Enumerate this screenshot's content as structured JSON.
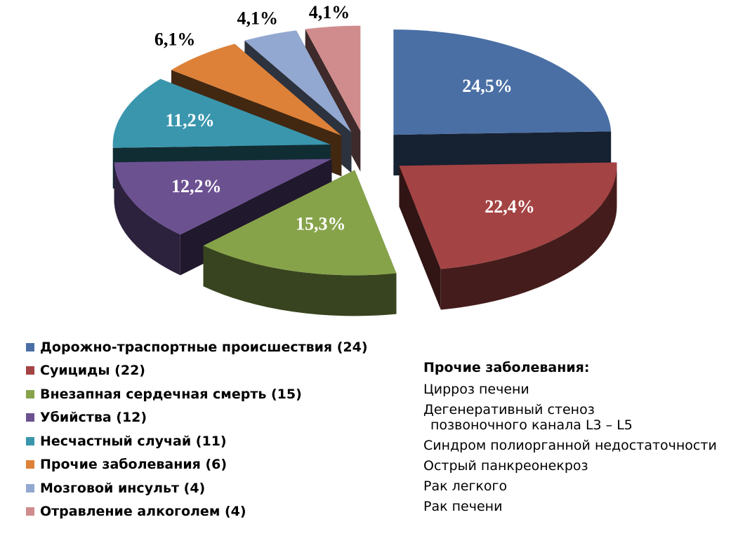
{
  "chart_data": {
    "type": "pie",
    "categories": [
      "Дорожно-траспортные происшествия (24)",
      "Суициды (22)",
      "Внезапная сердечная смерть (15)",
      "Убийства (12)",
      "Несчастный случай (11)",
      "Прочие заболевания (6)",
      "Мозговой инсульт (4)",
      "Отравление алкоголем (4)"
    ],
    "values": [
      24,
      22,
      15,
      12,
      11,
      6,
      4,
      4
    ],
    "data_labels": [
      "24,5%",
      "22,4%",
      "15,3%",
      "12,2%",
      "11,2%",
      "6,1%",
      "4,1%",
      "4,1%"
    ],
    "colors": [
      "#4a6fa5",
      "#a44343",
      "#86a34a",
      "#6c5191",
      "#3a96ad",
      "#dd8138",
      "#93a8d0",
      "#d08c8d"
    ],
    "style": "3D exploded",
    "legend_position": "bottom-left"
  },
  "notes": {
    "title": "Прочие заболевания:",
    "items": [
      [
        "Цирроз печени"
      ],
      [
        "Дегенеративный стеноз",
        "позвоночного канала L3 – L5"
      ],
      [
        "Синдром полиорганной недостаточности"
      ],
      [
        "Острый панкреонекроз"
      ],
      [
        "Рак легкого"
      ],
      [
        "Рак печени"
      ]
    ]
  }
}
